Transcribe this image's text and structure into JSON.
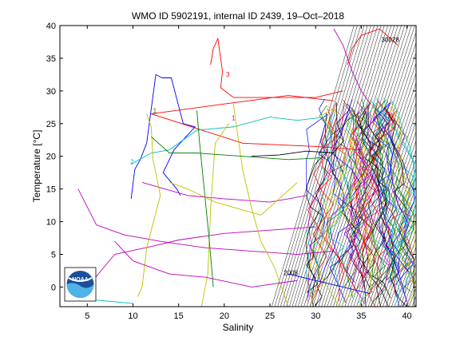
{
  "chart_data": {
    "type": "line",
    "title": "WMO ID 5902191, internal ID 2439, 19–Oct–2018",
    "xlabel": "Salinity",
    "ylabel": "Temperature [°C]",
    "xlim": [
      2,
      41
    ],
    "ylim": [
      -3,
      40
    ],
    "x_ticks": [
      5,
      10,
      15,
      20,
      25,
      30,
      35,
      40
    ],
    "y_ticks": [
      0,
      5,
      10,
      15,
      20,
      25,
      30,
      35,
      40
    ],
    "grid": false,
    "logo": "NOAA",
    "isopycnals": {
      "color": "#000000",
      "count": 60
    },
    "cycle_labels": [
      {
        "text": "1",
        "x": 12.2,
        "y": 26.6,
        "color": "#008000"
      },
      {
        "text": "1",
        "x": 20.8,
        "y": 25.5,
        "color": "#bf00bf"
      },
      {
        "text": "2",
        "x": 9.7,
        "y": 18.8,
        "color": "#00bfbf"
      },
      {
        "text": "3",
        "x": 20.2,
        "y": 32.2,
        "color": "#ff0000"
      },
      {
        "text": "2008",
        "x": 26.5,
        "y": 1.8,
        "color": "#000000"
      },
      {
        "text": "30028",
        "x": 37.2,
        "y": 37.5,
        "color": "#000000"
      }
    ],
    "series": [
      {
        "color": "#0000ff",
        "points": [
          [
            9.8,
            13.5
          ],
          [
            10.2,
            18
          ],
          [
            10.8,
            19.5
          ],
          [
            11.5,
            22
          ],
          [
            12.5,
            32.5
          ],
          [
            13.2,
            32
          ],
          [
            14.2,
            32
          ],
          [
            15.5,
            25
          ],
          [
            16.8,
            24.5
          ],
          [
            14.5,
            21
          ],
          [
            13.3,
            17.5
          ],
          [
            14.8,
            15
          ],
          [
            15.2,
            14
          ]
        ]
      },
      {
        "color": "#ff0000",
        "points": [
          [
            18.5,
            34
          ],
          [
            18.8,
            36.5
          ],
          [
            19.3,
            38
          ],
          [
            19.8,
            33
          ],
          [
            19.6,
            30.5
          ],
          [
            21,
            29
          ],
          [
            30,
            29
          ],
          [
            33,
            30
          ]
        ]
      },
      {
        "color": "#ff0000",
        "points": [
          [
            12,
            26.5
          ],
          [
            20,
            28
          ],
          [
            27,
            29.3
          ],
          [
            32,
            28.5
          ]
        ]
      },
      {
        "color": "#ff0000",
        "points": [
          [
            12,
            26.5
          ],
          [
            22,
            22
          ],
          [
            30,
            21.5
          ],
          [
            35,
            21
          ]
        ]
      },
      {
        "color": "#00bfbf",
        "points": [
          [
            9.8,
            18.8
          ],
          [
            12,
            20.5
          ],
          [
            14,
            21
          ],
          [
            17,
            24
          ],
          [
            21,
            24.5
          ],
          [
            25,
            26
          ],
          [
            28,
            25.5
          ],
          [
            31,
            26
          ]
        ]
      },
      {
        "color": "#bf00bf",
        "points": [
          [
            4,
            15
          ],
          [
            6,
            9.5
          ],
          [
            9,
            8
          ],
          [
            13,
            7
          ],
          [
            18,
            6
          ],
          [
            23,
            5.5
          ],
          [
            28,
            5
          ],
          [
            32,
            5.5
          ]
        ]
      },
      {
        "color": "#bf00bf",
        "points": [
          [
            5,
            0
          ],
          [
            8,
            5
          ],
          [
            12,
            6.2
          ],
          [
            15,
            7.2
          ],
          [
            20,
            8.2
          ],
          [
            25,
            8.7
          ],
          [
            30,
            9.2
          ]
        ]
      },
      {
        "color": "#bf00bf",
        "points": [
          [
            11,
            16
          ],
          [
            16,
            14
          ],
          [
            20,
            13.5
          ],
          [
            25,
            13
          ],
          [
            29,
            14
          ]
        ]
      },
      {
        "color": "#bfbf00",
        "points": [
          [
            11.5,
            26.5
          ],
          [
            12,
            24.5
          ],
          [
            12.2,
            19.5
          ],
          [
            13,
            14
          ],
          [
            11.5,
            6
          ],
          [
            11,
            0
          ],
          [
            10.5,
            -1.5
          ]
        ]
      },
      {
        "color": "#bfbf00",
        "points": [
          [
            14,
            16
          ],
          [
            16,
            15
          ],
          [
            19,
            13
          ],
          [
            21.5,
            12
          ],
          [
            24,
            11
          ],
          [
            26,
            13.5
          ],
          [
            28,
            16
          ]
        ]
      },
      {
        "color": "#bfbf00",
        "points": [
          [
            21,
            28
          ],
          [
            22,
            18
          ],
          [
            23,
            12
          ],
          [
            24,
            7
          ],
          [
            25.5,
            3
          ],
          [
            27,
            -3
          ]
        ]
      },
      {
        "color": "#bfbf00",
        "points": [
          [
            17.5,
            -3
          ],
          [
            18.2,
            2
          ],
          [
            18.5,
            12
          ],
          [
            19,
            22
          ],
          [
            20.5,
            25
          ]
        ]
      },
      {
        "color": "#008000",
        "points": [
          [
            12,
            23
          ],
          [
            14,
            20.5
          ],
          [
            17,
            20.5
          ],
          [
            22,
            20
          ],
          [
            27,
            19.5
          ],
          [
            31,
            19.8
          ]
        ]
      },
      {
        "color": "#008000",
        "points": [
          [
            17,
            27
          ],
          [
            17.3,
            22
          ],
          [
            17.8,
            15
          ],
          [
            18.3,
            8
          ],
          [
            18.8,
            0
          ]
        ]
      },
      {
        "color": "#000000",
        "points": [
          [
            23,
            20
          ],
          [
            26,
            20.2
          ],
          [
            29,
            20.8
          ],
          [
            32,
            20.5
          ]
        ]
      },
      {
        "color": "#bf00bf",
        "points": [
          [
            8,
            7
          ],
          [
            10,
            4
          ],
          [
            14,
            2
          ],
          [
            18,
            1.5
          ],
          [
            23,
            0
          ],
          [
            28,
            1
          ]
        ]
      },
      {
        "color": "#00bfbf",
        "points": [
          [
            3,
            -1.5
          ],
          [
            6,
            -2
          ],
          [
            10,
            -2.5
          ]
        ]
      },
      {
        "color": "#0000ff",
        "points": [
          [
            27,
            2
          ],
          [
            30,
            1
          ],
          [
            33,
            0
          ],
          [
            36,
            -1
          ]
        ]
      },
      {
        "color": "#ff0000",
        "points": [
          [
            33.5,
            34
          ],
          [
            34,
            36.5
          ],
          [
            35,
            38.5
          ],
          [
            37,
            39.5
          ],
          [
            39,
            37
          ]
        ]
      },
      {
        "color": "#bf00bf",
        "points": [
          [
            32,
            39.5
          ],
          [
            33,
            37
          ],
          [
            34,
            33
          ],
          [
            35,
            30
          ],
          [
            36,
            28
          ]
        ]
      }
    ]
  }
}
